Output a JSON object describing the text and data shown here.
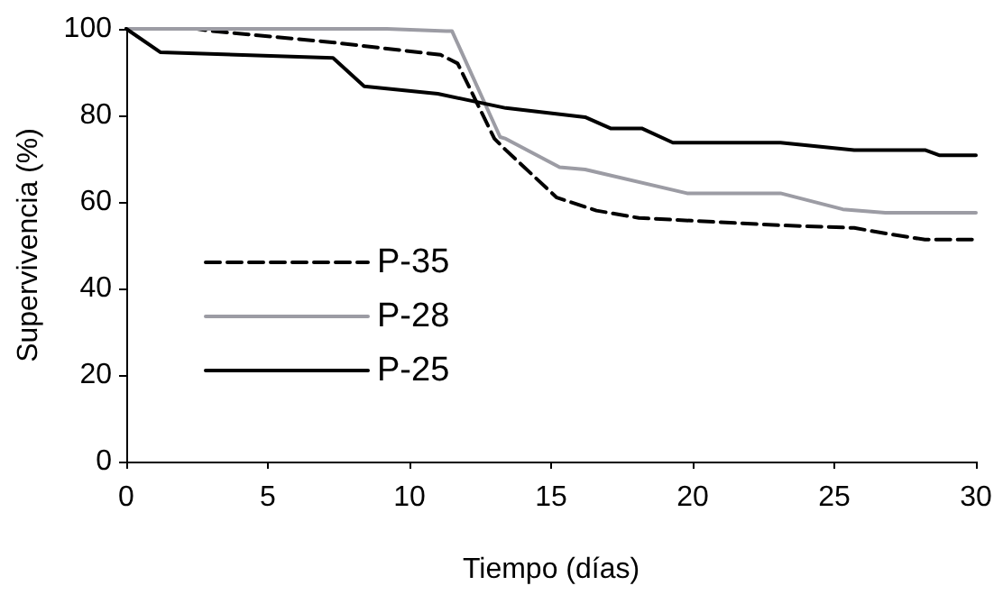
{
  "chart_data": {
    "type": "line",
    "xlabel": "Tiempo (días)",
    "ylabel": "Supervivencia (%)",
    "xlim": [
      0,
      30
    ],
    "xticks": [
      0,
      5,
      10,
      15,
      20,
      25,
      30
    ],
    "ylim": [
      0,
      100
    ],
    "yticks": [
      0,
      20,
      40,
      60,
      80,
      100
    ],
    "grid": false,
    "legend": "left",
    "marker": "none",
    "series": [
      {
        "name": "P-35",
        "color": "#000000",
        "line_style": "dashed",
        "x": [
          0,
          2.5,
          3,
          7.1,
          11.1,
          11.7,
          13,
          13.4,
          15.2,
          16.6,
          18.1,
          23.1,
          25.7,
          27,
          28.2,
          30
        ],
        "values": [
          100,
          100,
          99.5,
          97,
          94,
          92,
          74.6,
          72,
          61,
          58,
          56.3,
          54.6,
          54,
          52.5,
          51.3,
          51.3
        ]
      },
      {
        "name": "P-28",
        "color": "#9c9ca4",
        "line_style": "solid",
        "x": [
          0,
          9.2,
          11.3,
          11.5,
          13.2,
          13.4,
          15.3,
          16.2,
          19.8,
          23.1,
          25.3,
          26.8,
          30
        ],
        "values": [
          100,
          100,
          99.5,
          99.5,
          75,
          74.6,
          68,
          67.5,
          62,
          62,
          58.3,
          57.5,
          57.5
        ]
      },
      {
        "name": "P-25",
        "color": "#000000",
        "line_style": "solid",
        "x": [
          0,
          1.2,
          7.3,
          8.4,
          11,
          13.4,
          16.2,
          17.1,
          18.2,
          19.3,
          23.1,
          25.7,
          28.2,
          28.7,
          30
        ],
        "values": [
          100,
          94.6,
          93.3,
          86.7,
          85,
          81.7,
          79.6,
          77,
          77,
          73.7,
          73.7,
          72,
          72,
          70.8,
          70.8
        ]
      }
    ]
  }
}
